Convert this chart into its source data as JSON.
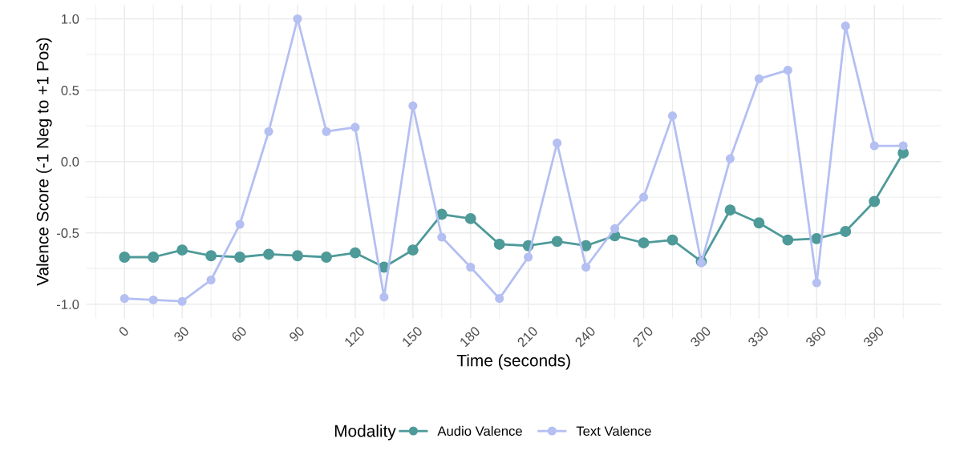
{
  "chart_data": {
    "type": "line",
    "xlabel": "Time (seconds)",
    "ylabel": "Valence Score (-1 Neg to +1 Pos)",
    "legend_title": "Modality",
    "x": [
      0,
      15,
      30,
      45,
      60,
      75,
      90,
      105,
      120,
      135,
      150,
      165,
      180,
      195,
      210,
      225,
      240,
      255,
      270,
      285,
      300,
      315,
      330,
      345,
      360,
      375,
      390,
      405
    ],
    "series": [
      {
        "name": "Audio Valence",
        "color": "#4e9a99",
        "values": [
          -0.67,
          -0.67,
          -0.62,
          -0.66,
          -0.67,
          -0.65,
          -0.66,
          -0.67,
          -0.64,
          -0.74,
          -0.62,
          -0.37,
          -0.4,
          -0.58,
          -0.59,
          -0.56,
          -0.59,
          -0.52,
          -0.57,
          -0.55,
          -0.7,
          -0.34,
          -0.43,
          -0.55,
          -0.54,
          -0.49,
          -0.28,
          0.06
        ]
      },
      {
        "name": "Text Valence",
        "color": "#b4bff2",
        "values": [
          -0.96,
          -0.97,
          -0.98,
          -0.83,
          -0.44,
          0.21,
          1.0,
          0.21,
          0.24,
          -0.95,
          0.39,
          -0.53,
          -0.74,
          -0.96,
          -0.67,
          0.13,
          -0.74,
          -0.47,
          -0.25,
          0.32,
          -0.71,
          0.02,
          0.58,
          0.64,
          -0.85,
          0.95,
          0.11,
          0.11
        ]
      }
    ],
    "xlim": [
      -20,
      425
    ],
    "ylim": [
      -1.1,
      1.1
    ],
    "xticks": [
      0,
      30,
      60,
      90,
      120,
      150,
      180,
      210,
      240,
      270,
      300,
      330,
      360,
      390
    ],
    "yticks": [
      {
        "value": -1.0,
        "label": "-1.0"
      },
      {
        "value": -0.5,
        "label": "-0.5"
      },
      {
        "value": 0.0,
        "label": "0.0"
      },
      {
        "value": 0.5,
        "label": "0.5"
      },
      {
        "value": 1.0,
        "label": "1.0"
      }
    ],
    "grid": true,
    "legend": "bottom",
    "marker": "circle",
    "line_style": "solid"
  }
}
